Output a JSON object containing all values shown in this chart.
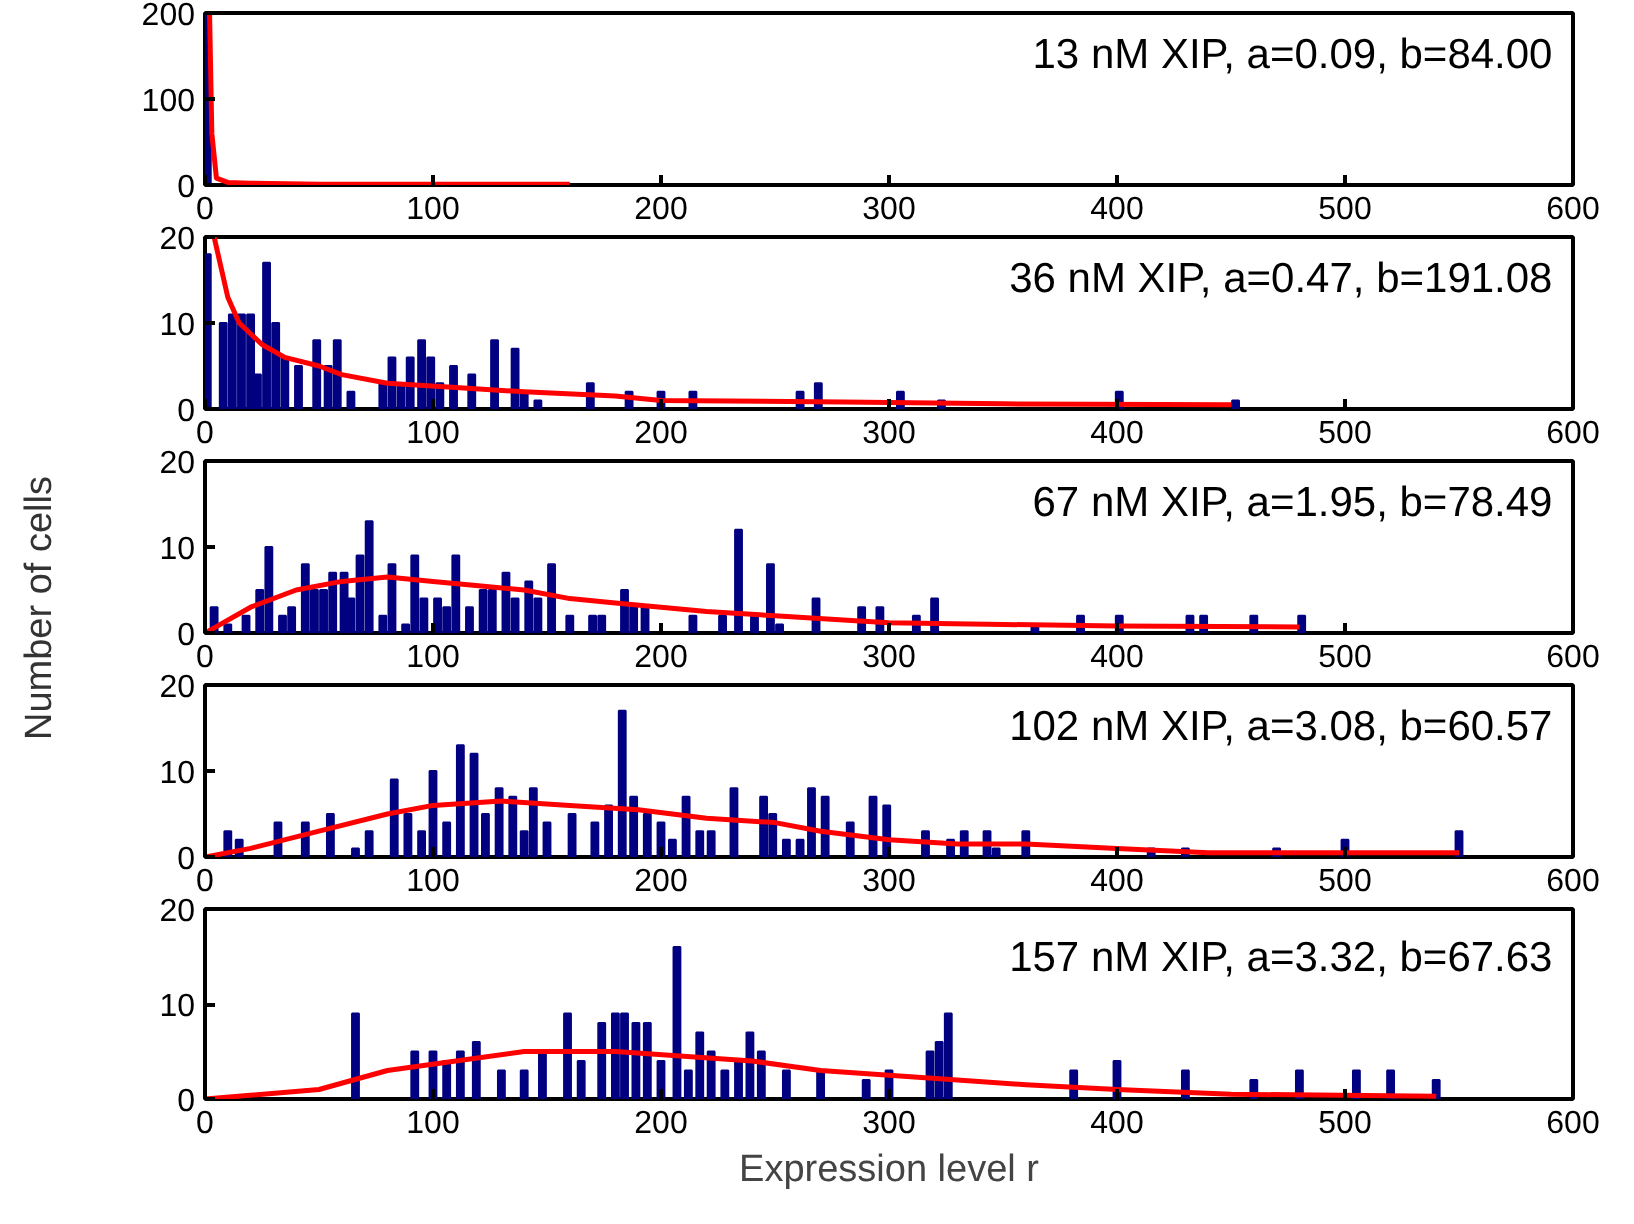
{
  "chart_data": [
    {
      "type": "bar",
      "xlim": [
        0,
        600
      ],
      "ylim": [
        0,
        200
      ],
      "xticks": [
        0,
        100,
        200,
        300,
        400,
        500,
        600
      ],
      "yticks": [
        0,
        100,
        200
      ],
      "grid": false,
      "annotations": [
        "13 nM XIP, a=0.09, b=84.00"
      ],
      "series": [
        {
          "color": "#000080",
          "x": [
            1
          ],
          "values": [
            200
          ]
        },
        {
          "type": "line",
          "color": "#ff0000",
          "x": [
            2,
            3,
            5,
            10,
            20,
            50,
            100,
            160
          ],
          "values": [
            200,
            60,
            8,
            3,
            2,
            1,
            1,
            1
          ]
        }
      ]
    },
    {
      "type": "bar",
      "xlim": [
        0,
        600
      ],
      "ylim": [
        0,
        20
      ],
      "xticks": [
        0,
        100,
        200,
        300,
        400,
        500,
        600
      ],
      "yticks": [
        0,
        10,
        20
      ],
      "grid": false,
      "annotations": [
        "36 nM XIP, a=0.47, b=191.08"
      ],
      "series": [
        {
          "color": "#000080",
          "x": [
            1,
            8,
            12,
            16,
            20,
            23,
            27,
            31,
            35,
            41,
            49,
            54,
            58,
            64,
            78,
            82,
            86,
            90,
            95,
            99,
            103,
            109,
            117,
            127,
            136,
            140,
            146,
            169,
            186,
            200,
            214,
            261,
            269,
            305,
            323,
            401,
            452
          ],
          "values": [
            18,
            10,
            11,
            11,
            11,
            4,
            17,
            10,
            6,
            5,
            8,
            5,
            8,
            2,
            3,
            6,
            3,
            6,
            8,
            6,
            3,
            5,
            4,
            8,
            7,
            2,
            1,
            3,
            2,
            2,
            2,
            2,
            3,
            2,
            1,
            2,
            1
          ]
        },
        {
          "type": "line",
          "color": "#ff0000",
          "x": [
            4,
            10,
            15,
            25,
            35,
            50,
            60,
            80,
            110,
            140,
            180,
            200,
            280,
            350,
            450
          ],
          "values": [
            20,
            13,
            10,
            7.5,
            6,
            5,
            4,
            3,
            2.5,
            2,
            1.5,
            1,
            0.8,
            0.6,
            0.5
          ]
        }
      ]
    },
    {
      "type": "bar",
      "xlim": [
        0,
        600
      ],
      "ylim": [
        0,
        20
      ],
      "xticks": [
        0,
        100,
        200,
        300,
        400,
        500,
        600
      ],
      "yticks": [
        0,
        10,
        20
      ],
      "grid": false,
      "ylabel": "Number of cells",
      "annotations": [
        "67 nM XIP, a=1.95, b=78.49"
      ],
      "series": [
        {
          "color": "#000080",
          "x": [
            4,
            10,
            18,
            24,
            28,
            34,
            38,
            44,
            48,
            52,
            56,
            61,
            64,
            68,
            72,
            78,
            82,
            88,
            92,
            96,
            102,
            106,
            110,
            116,
            122,
            126,
            132,
            136,
            142,
            146,
            152,
            160,
            170,
            174,
            184,
            188,
            193,
            214,
            227,
            234,
            241,
            248,
            252,
            268,
            288,
            296,
            312,
            320,
            364,
            384,
            401,
            432,
            438,
            460,
            481
          ],
          "values": [
            3,
            1,
            2,
            5,
            10,
            2,
            3,
            8,
            5,
            5,
            7,
            7,
            4,
            9,
            13,
            2,
            8,
            1,
            9,
            4,
            4,
            3,
            9,
            3,
            5,
            5,
            7,
            4,
            6,
            4,
            8,
            2,
            2,
            2,
            5,
            3,
            3,
            2,
            2,
            12,
            2,
            8,
            1,
            4,
            3,
            3,
            2,
            4,
            1,
            2,
            2,
            2,
            2,
            2,
            2
          ]
        },
        {
          "type": "line",
          "color": "#ff0000",
          "x": [
            0,
            20,
            40,
            60,
            80,
            100,
            120,
            140,
            160,
            180,
            200,
            220,
            250,
            280,
            300,
            350,
            400,
            480
          ],
          "values": [
            0,
            3,
            5,
            6,
            6.5,
            6,
            5.5,
            5,
            4,
            3.5,
            3,
            2.5,
            2,
            1.5,
            1.2,
            1,
            0.8,
            0.7
          ]
        }
      ]
    },
    {
      "type": "bar",
      "xlim": [
        0,
        600
      ],
      "ylim": [
        0,
        20
      ],
      "xticks": [
        0,
        100,
        200,
        300,
        400,
        500,
        600
      ],
      "yticks": [
        0,
        10,
        20
      ],
      "grid": false,
      "annotations": [
        "102 nM XIP, a=3.08, b=60.57"
      ],
      "series": [
        {
          "color": "#000080",
          "x": [
            10,
            15,
            32,
            44,
            55,
            66,
            72,
            83,
            89,
            95,
            100,
            106,
            112,
            118,
            123,
            129,
            135,
            140,
            144,
            150,
            161,
            171,
            177,
            183,
            188,
            194,
            200,
            205,
            211,
            217,
            222,
            232,
            245,
            249,
            255,
            261,
            266,
            272,
            283,
            293,
            299,
            316,
            327,
            333,
            343,
            347,
            360,
            415,
            430,
            470,
            500,
            550
          ],
          "values": [
            3,
            2,
            4,
            4,
            5,
            1,
            3,
            9,
            5,
            3,
            10,
            4,
            13,
            12,
            5,
            8,
            7,
            3,
            8,
            4,
            5,
            4,
            6,
            17,
            7,
            5,
            4,
            2,
            7,
            3,
            3,
            8,
            7,
            5,
            2,
            2,
            8,
            7,
            4,
            7,
            6,
            3,
            2,
            3,
            3,
            1,
            3,
            1,
            1,
            1,
            2,
            3
          ]
        },
        {
          "type": "line",
          "color": "#ff0000",
          "x": [
            0,
            20,
            50,
            80,
            100,
            130,
            160,
            190,
            220,
            250,
            270,
            300,
            330,
            360,
            400,
            440,
            550
          ],
          "values": [
            0,
            1,
            3,
            5,
            6,
            6.5,
            6,
            5.5,
            4.5,
            4,
            3,
            2,
            1.5,
            1.5,
            1,
            0.5,
            0.5
          ]
        }
      ]
    },
    {
      "type": "bar",
      "xlim": [
        0,
        600
      ],
      "ylim": [
        0,
        20
      ],
      "xticks": [
        0,
        100,
        200,
        300,
        400,
        500,
        600
      ],
      "yticks": [
        0,
        10,
        20
      ],
      "grid": false,
      "xlabel": "Expression level r",
      "annotations": [
        "157 nM XIP, a=3.32, b=67.63"
      ],
      "series": [
        {
          "color": "#000080",
          "x": [
            66,
            92,
            100,
            106,
            112,
            119,
            130,
            140,
            148,
            159,
            165,
            174,
            180,
            184,
            189,
            194,
            200,
            207,
            212,
            217,
            222,
            228,
            234,
            239,
            244,
            255,
            270,
            290,
            300,
            318,
            322,
            326,
            381,
            400,
            430,
            460,
            480,
            505,
            520,
            540
          ],
          "values": [
            9,
            5,
            5,
            4,
            5,
            6,
            3,
            3,
            5,
            9,
            4,
            8,
            9,
            9,
            8,
            8,
            4,
            16,
            3,
            7,
            5,
            3,
            4,
            7,
            5,
            3,
            3,
            2,
            3,
            5,
            6,
            9,
            3,
            4,
            3,
            2,
            3,
            3,
            3,
            2
          ]
        },
        {
          "type": "line",
          "color": "#ff0000",
          "x": [
            0,
            50,
            80,
            110,
            140,
            180,
            210,
            240,
            270,
            300,
            330,
            360,
            400,
            450,
            540
          ],
          "values": [
            0,
            1,
            3,
            4,
            5,
            5,
            4.5,
            4,
            3,
            2.5,
            2,
            1.5,
            1,
            0.5,
            0.3
          ]
        }
      ]
    }
  ]
}
